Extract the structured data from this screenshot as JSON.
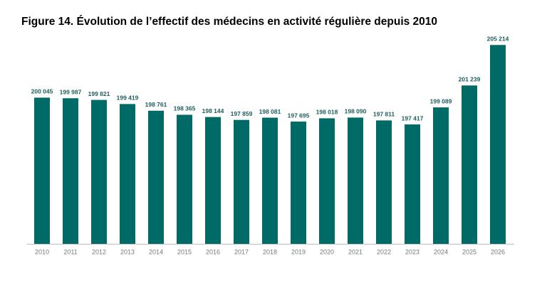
{
  "chart_data": {
    "type": "bar",
    "title": "Figure 14. Évolution de l’effectif des médecins en activité régulière depuis 2010",
    "categories": [
      "2010",
      "2011",
      "2012",
      "2013",
      "2014",
      "2015",
      "2016",
      "2017",
      "2018",
      "2019",
      "2020",
      "2021",
      "2022",
      "2023",
      "2024",
      "2025",
      "2026"
    ],
    "values": [
      200045,
      199987,
      199821,
      199419,
      198761,
      198365,
      198144,
      197859,
      198081,
      197695,
      198018,
      198090,
      197811,
      197417,
      199089,
      201239,
      205214
    ],
    "value_labels": [
      "200 045",
      "199 987",
      "199 821",
      "199 419",
      "198 761",
      "198 365",
      "198 144",
      "197 859",
      "198 081",
      "197 695",
      "198 018",
      "198 090",
      "197 811",
      "197 417",
      "199 089",
      "201 239",
      "205 214"
    ],
    "color": "#006a66",
    "ylim": [
      185700,
      206000
    ]
  }
}
